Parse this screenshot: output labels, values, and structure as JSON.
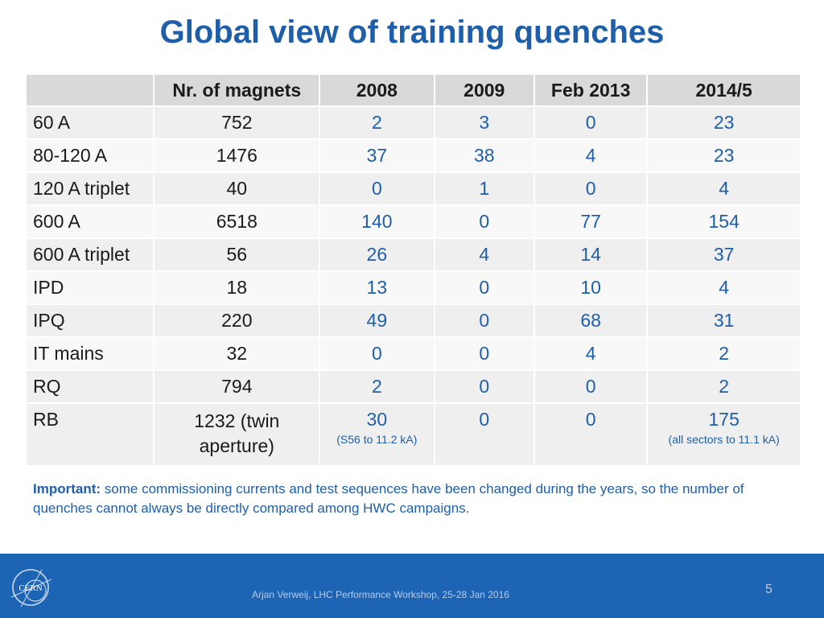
{
  "title": "Global view of training quenches",
  "table": {
    "headers": [
      "",
      "Nr. of magnets",
      "2008",
      "2009",
      "Feb 2013",
      "2014/5"
    ],
    "rows": [
      {
        "label": "60 A",
        "magnets": "752",
        "y2008": "2",
        "y2009": "3",
        "feb2013": "0",
        "y2014": "23"
      },
      {
        "label": "80-120 A",
        "magnets": "1476",
        "y2008": "37",
        "y2009": "38",
        "feb2013": "4",
        "y2014": "23"
      },
      {
        "label": "120 A triplet",
        "magnets": "40",
        "y2008": "0",
        "y2009": "1",
        "feb2013": "0",
        "y2014": "4"
      },
      {
        "label": "600 A",
        "magnets": "6518",
        "y2008": "140",
        "y2009": "0",
        "feb2013": "77",
        "y2014": "154"
      },
      {
        "label": "600 A triplet",
        "magnets": "56",
        "y2008": "26",
        "y2009": "4",
        "feb2013": "14",
        "y2014": "37"
      },
      {
        "label": "IPD",
        "magnets": "18",
        "y2008": "13",
        "y2009": "0",
        "feb2013": "10",
        "y2014": "4"
      },
      {
        "label": "IPQ",
        "magnets": "220",
        "y2008": "49",
        "y2009": "0",
        "feb2013": "68",
        "y2014": "31"
      },
      {
        "label": "IT mains",
        "magnets": "32",
        "y2008": "0",
        "y2009": "0",
        "feb2013": "4",
        "y2014": "2"
      },
      {
        "label": "RQ",
        "magnets": "794",
        "y2008": "2",
        "y2009": "0",
        "feb2013": "0",
        "y2014": "2"
      }
    ],
    "last_row": {
      "label": "RB",
      "magnets": "1232 (twin aperture)",
      "y2008": "30",
      "y2008_note": "(S56 to 11.2 kA)",
      "y2009": "0",
      "feb2013": "0",
      "y2014": "175",
      "y2014_note": "(all sectors to 11.1 kA)"
    }
  },
  "important": {
    "label": "Important:",
    "text": "some commissioning currents and test sequences have been changed during the years, so the number of quenches cannot always be directly compared among HWC campaigns."
  },
  "footer": {
    "logo_text": "CERN",
    "text": "Arjan Verweij, LHC Performance Workshop, 25-28 Jan 2016",
    "page_number": "5"
  },
  "colors": {
    "title": "#1f5ea8",
    "footer_bg": "#1d64b4",
    "header_bg": "#d9d9d9"
  }
}
